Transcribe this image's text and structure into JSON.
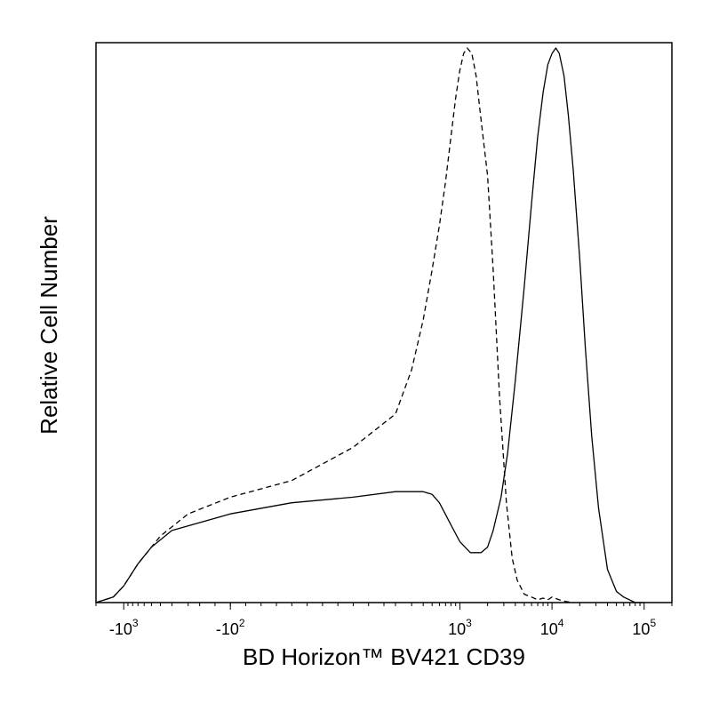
{
  "chart_data": {
    "type": "line",
    "xlabel": "BD Horizon™ BV421 CD39",
    "ylabel": "Relative Cell Number",
    "x_scale": "biexponential",
    "xlim": [
      -2000,
      200000
    ],
    "ylim": [
      0,
      1
    ],
    "grid": false,
    "legend": "none",
    "x_ticks": [
      {
        "value": -1000,
        "base": "-10",
        "exp": "3"
      },
      {
        "value": -100,
        "base": "-10",
        "exp": "2"
      },
      {
        "value": 1000,
        "base": "10",
        "exp": "3"
      },
      {
        "value": 10000,
        "base": "10",
        "exp": "4"
      },
      {
        "value": 100000,
        "base": "10",
        "exp": "5"
      }
    ],
    "series": [
      {
        "style": "dashed",
        "color": "#000000",
        "x": [
          -2000,
          -1300,
          -1000,
          -700,
          -400,
          -200,
          -100,
          0,
          100,
          200,
          300,
          400,
          500,
          600,
          700,
          800,
          900,
          1000,
          1100,
          1200,
          1350,
          1500,
          1700,
          2000,
          2300,
          2700,
          3200,
          3700,
          4200,
          5000,
          6000,
          7000,
          8000,
          9000,
          10000,
          12000,
          14000,
          17000
        ],
        "y": [
          0.0,
          0.01,
          0.03,
          0.07,
          0.12,
          0.16,
          0.19,
          0.22,
          0.28,
          0.34,
          0.42,
          0.51,
          0.6,
          0.68,
          0.76,
          0.84,
          0.91,
          0.96,
          0.99,
          1.0,
          0.99,
          0.95,
          0.87,
          0.77,
          0.6,
          0.37,
          0.18,
          0.08,
          0.04,
          0.015,
          0.01,
          0.005,
          0.008,
          0.005,
          0.01,
          0.005,
          0.002,
          0.0
        ]
      },
      {
        "style": "solid",
        "color": "#000000",
        "x": [
          -2000,
          -1300,
          -1000,
          -700,
          -500,
          -300,
          -100,
          0,
          100,
          200,
          300,
          400,
          500,
          600,
          800,
          1000,
          1300,
          1700,
          2000,
          2300,
          2800,
          3300,
          4000,
          5000,
          6000,
          7000,
          8000,
          9000,
          10000,
          11000,
          12000,
          13500,
          15000,
          17000,
          20000,
          23000,
          27000,
          32000,
          40000,
          50000,
          60000,
          80000,
          100000
        ],
        "y": [
          0.0,
          0.01,
          0.03,
          0.07,
          0.1,
          0.13,
          0.16,
          0.18,
          0.19,
          0.2,
          0.2,
          0.2,
          0.195,
          0.18,
          0.14,
          0.11,
          0.09,
          0.09,
          0.1,
          0.13,
          0.19,
          0.27,
          0.4,
          0.57,
          0.72,
          0.84,
          0.92,
          0.97,
          0.99,
          1.0,
          0.99,
          0.95,
          0.88,
          0.78,
          0.62,
          0.46,
          0.3,
          0.17,
          0.06,
          0.02,
          0.01,
          0.0,
          0.0
        ]
      }
    ]
  }
}
